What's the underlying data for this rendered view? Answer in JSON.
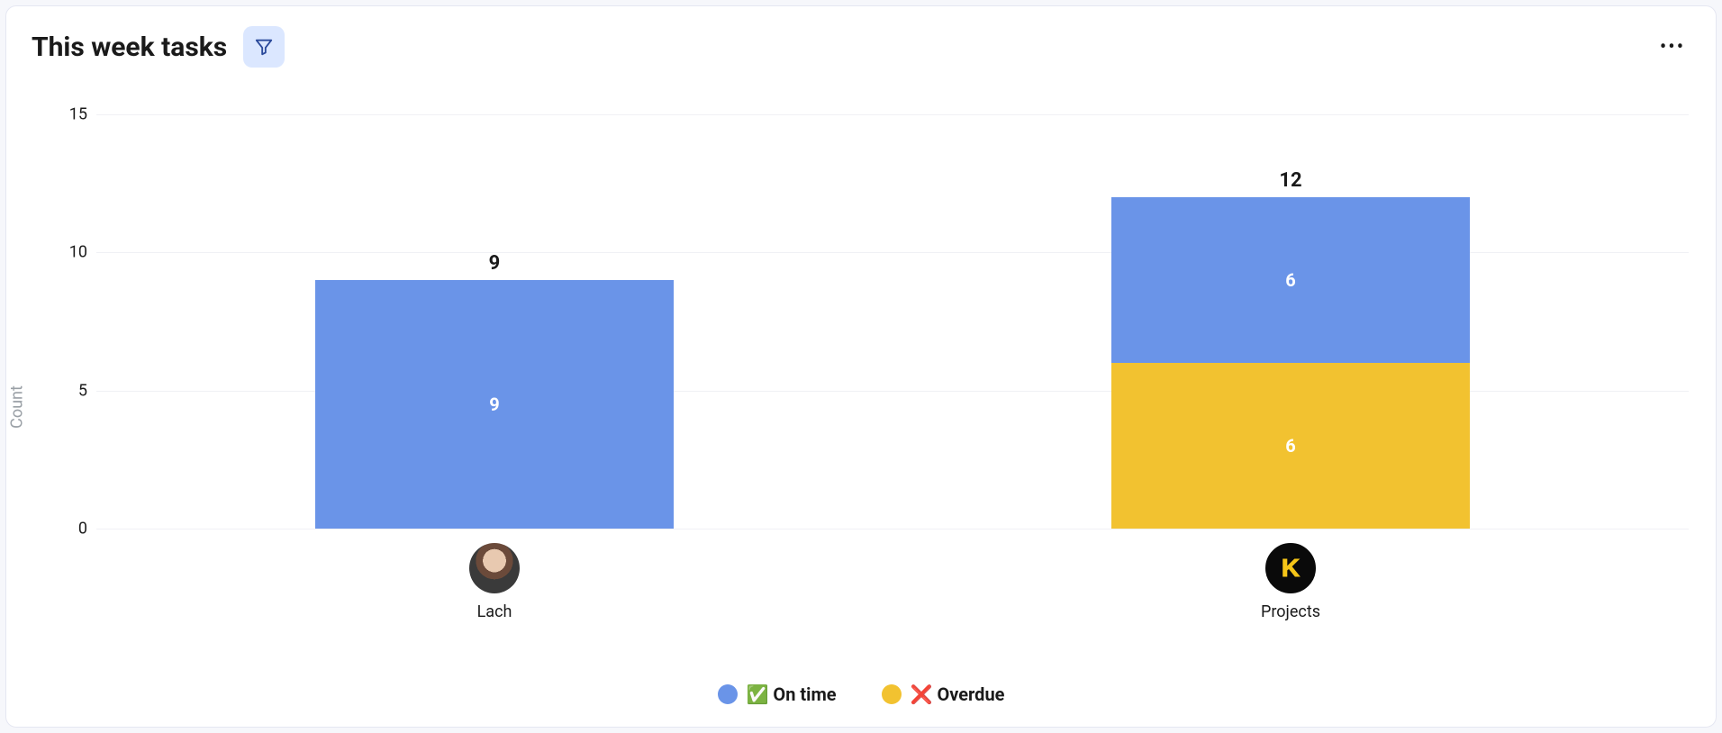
{
  "card": {
    "title": "This week tasks"
  },
  "chart": {
    "type": "stacked-bar",
    "y_axis_label": "Count",
    "ylim": [
      0,
      15
    ],
    "ytick_step": 5,
    "yticks": [
      0,
      5,
      10,
      15
    ],
    "grid_color": "#f0f1f5",
    "background_color": "#ffffff",
    "bar_width_ratio": 0.45,
    "categories": [
      {
        "label": "Lach",
        "avatar_type": "person",
        "total": 9,
        "segments": [
          {
            "series": "on_time",
            "value": 9
          }
        ]
      },
      {
        "label": "Projects",
        "avatar_type": "logo",
        "avatar_letter": "K",
        "total": 12,
        "segments": [
          {
            "series": "overdue",
            "value": 6
          },
          {
            "series": "on_time",
            "value": 6
          }
        ]
      }
    ],
    "series": {
      "on_time": {
        "label": "✅ On time",
        "color": "#6a94e8"
      },
      "overdue": {
        "label": "❌ Overdue",
        "color": "#f2c230"
      }
    },
    "value_label_color": "#ffffff",
    "value_label_fontsize": 20,
    "total_label_fontsize": 22,
    "title_fontsize": 30
  }
}
